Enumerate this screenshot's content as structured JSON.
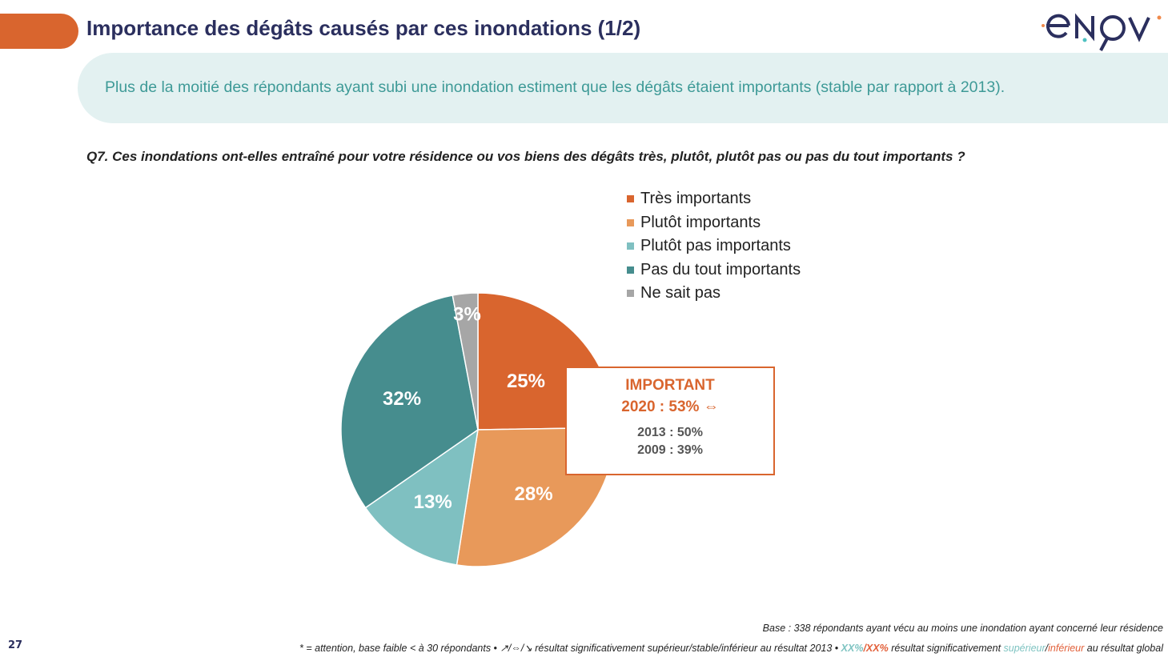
{
  "header": {
    "title": "Importance des dégâts causés par ces inondations (1/2)",
    "logo_text": "enov"
  },
  "banner": "Plus de la moitié des répondants ayant subi une inondation estiment que les dégâts étaient importants (stable par rapport à 2013).",
  "question": "Q7. Ces inondations ont-elles entraîné pour votre résidence ou vos biens des dégâts très, plutôt, plutôt pas ou pas du tout importants ?",
  "chart_data": {
    "type": "pie",
    "start": "top",
    "direction": "clockwise",
    "categories": [
      "Très importants",
      "Plutôt importants",
      "Plutôt pas importants",
      "Pas du tout importants",
      "Ne sait pas"
    ],
    "values": [
      25,
      28,
      13,
      32,
      3
    ],
    "labels": [
      "25%",
      "28%",
      "13%",
      "32%",
      "3%"
    ],
    "colors": [
      "#d9652e",
      "#e8995a",
      "#7fc0c1",
      "#468d8e",
      "#a6a6a6"
    ],
    "legend": "top-right"
  },
  "callout": {
    "title": "IMPORTANT",
    "current": "2020 : 53% ⇔",
    "y2013": "2013 : 50%",
    "y2009": "2009 : 39%"
  },
  "footer": {
    "page": "27",
    "base": "Base : 338 répondants ayant vécu au moins une inondation ayant concerné leur résidence",
    "note_a": "* = attention, base faible < à 30 répondants • ↗/⇔/↘ résultat significativement supérieur/stable/inférieur au résultat 2013 • ",
    "xx_sup": "XX%",
    "slash": "/",
    "xx_inf": "XX%",
    "note_b": " résultat significativement ",
    "sup": "supérieur",
    "inf": "inférieur",
    "note_c": " au résultat global"
  }
}
